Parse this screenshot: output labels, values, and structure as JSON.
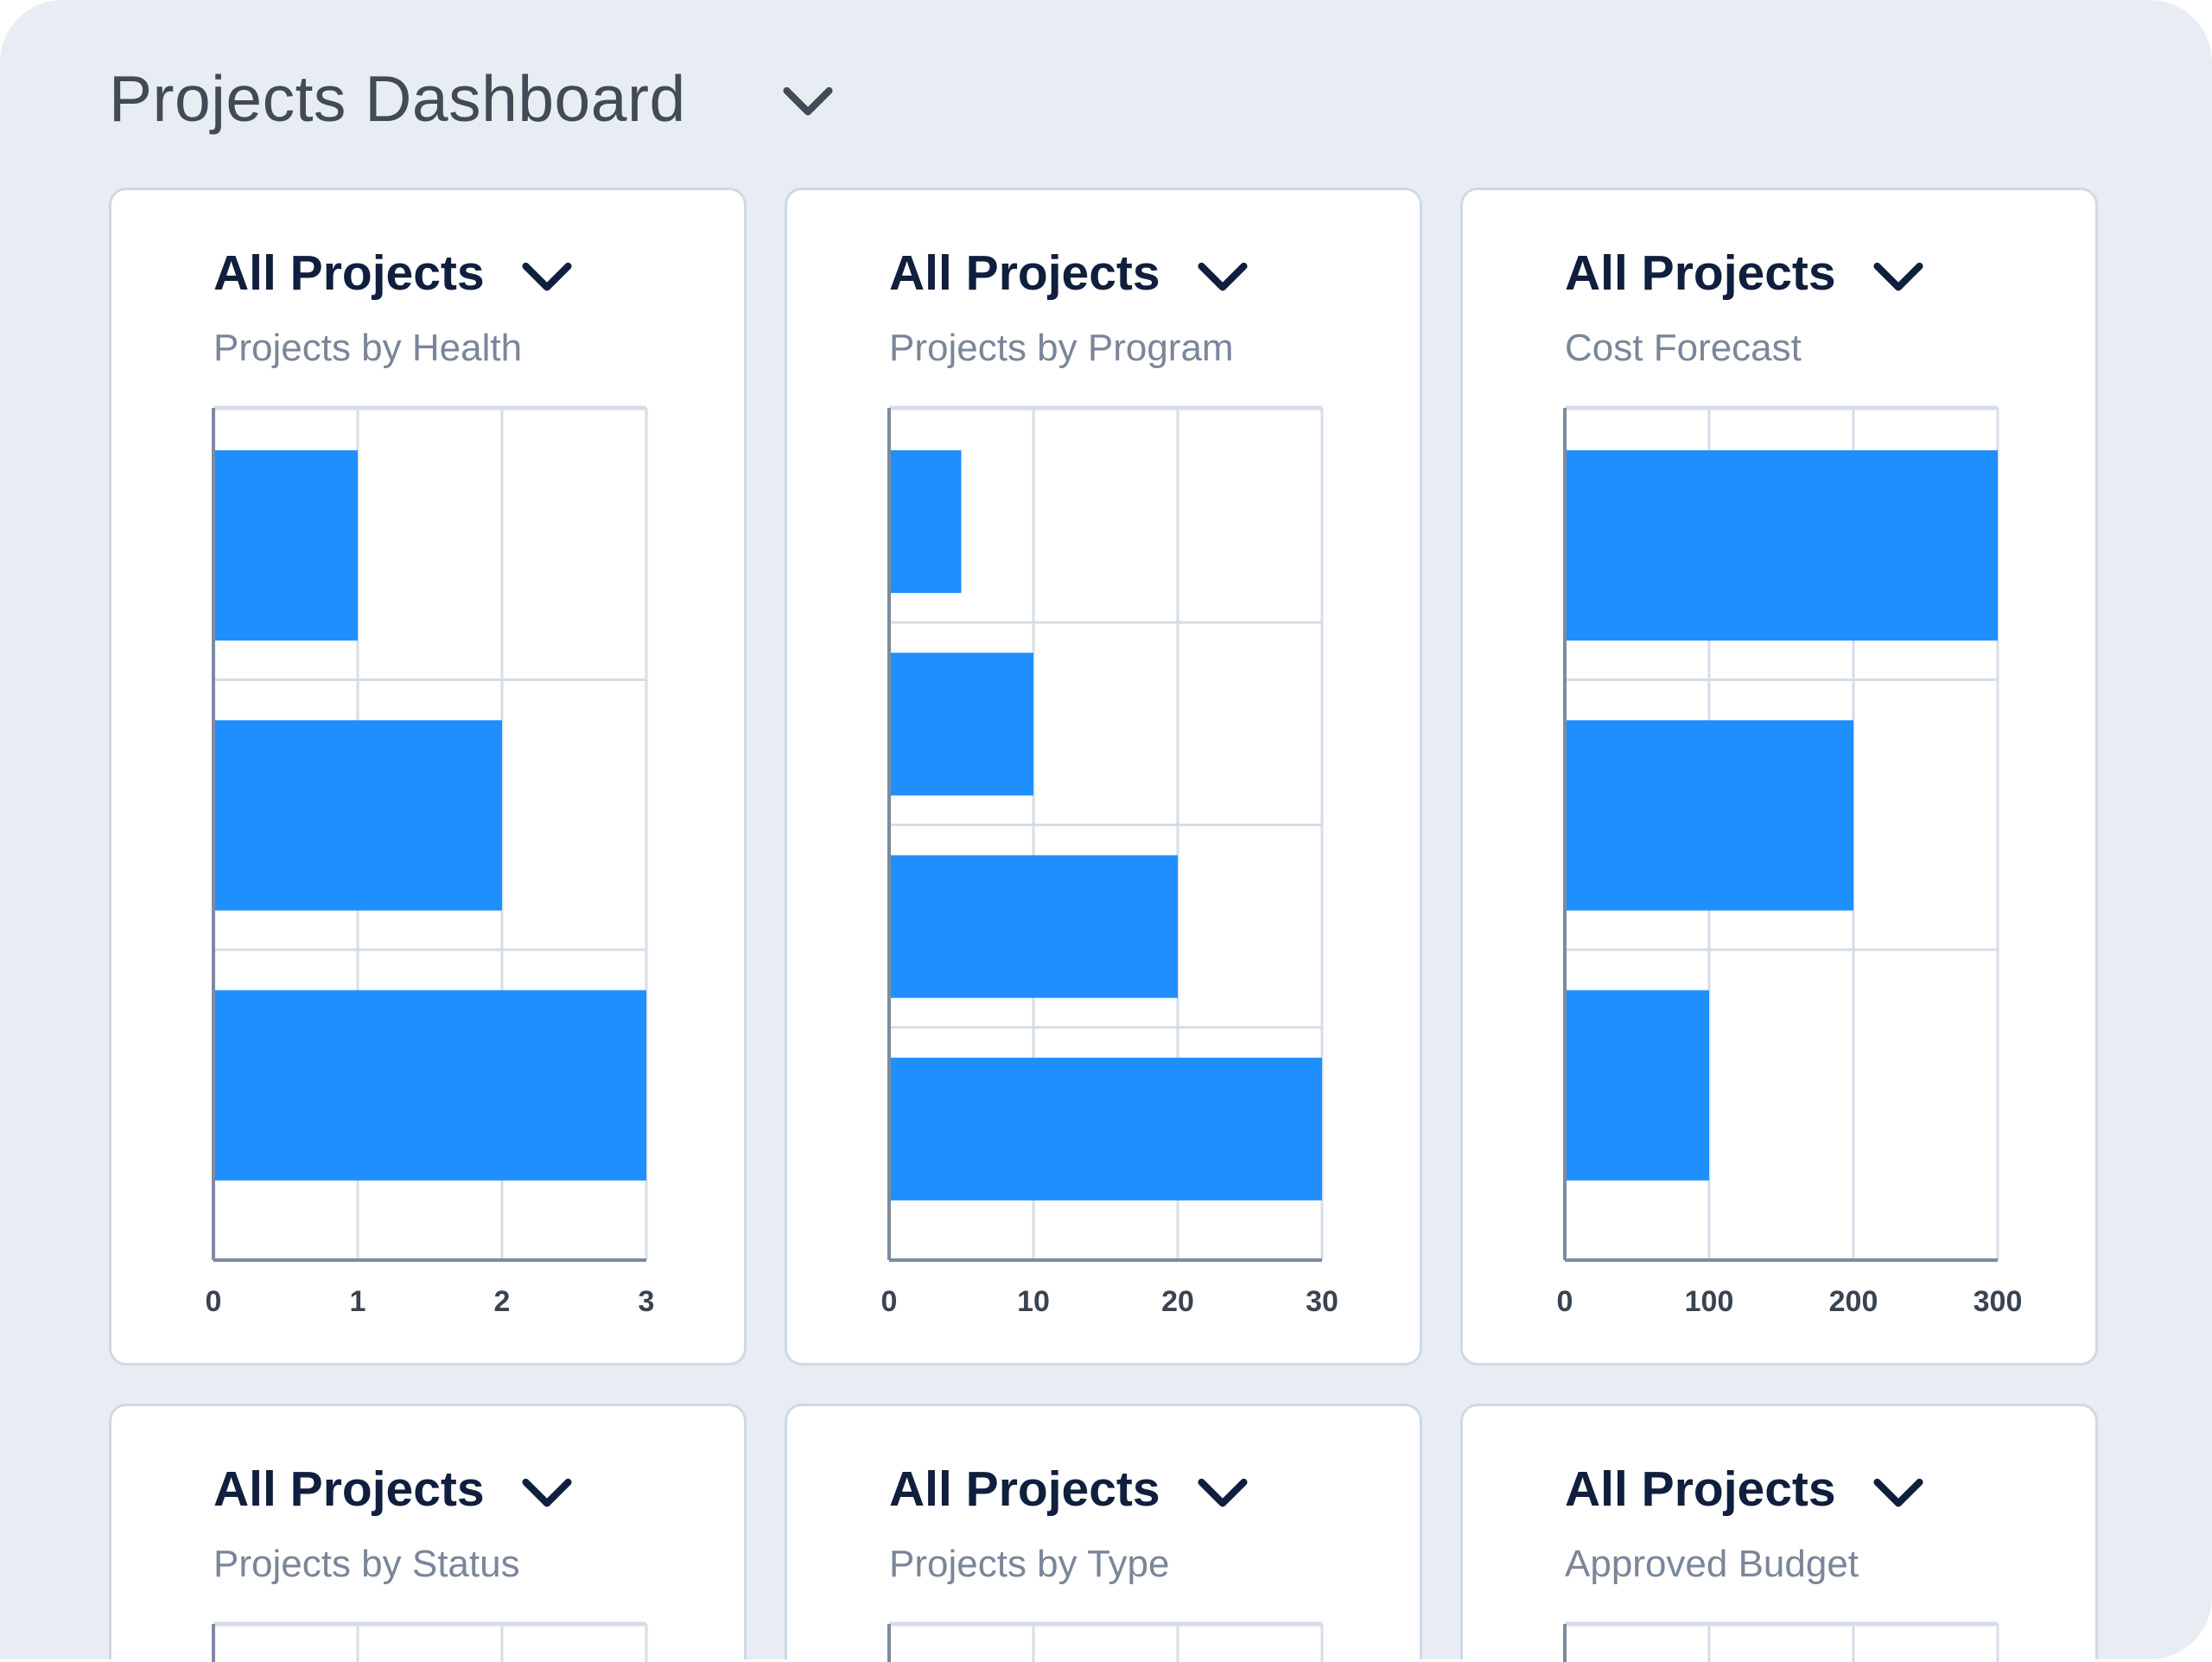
{
  "header": {
    "title": "Projects Dashboard",
    "icon": "chevron-down-icon"
  },
  "colors": {
    "bar": "#1f8ffe",
    "background": "#e8edf4",
    "title": "#414a57",
    "subtitle": "#7a8699"
  },
  "cards": [
    {
      "filter": "All Projects",
      "subtitle": "Projects by Health"
    },
    {
      "filter": "All Projects",
      "subtitle": "Projects by Program"
    },
    {
      "filter": "All Projects",
      "subtitle": "Cost Forecast"
    },
    {
      "filter": "All Projects",
      "subtitle": "Projects by Status"
    },
    {
      "filter": "All Projects",
      "subtitle": "Projects by Type"
    },
    {
      "filter": "All Projects",
      "subtitle": "Approved Budget"
    }
  ],
  "chart_data": [
    {
      "type": "bar",
      "orientation": "horizontal",
      "title": "Projects by Health",
      "values": [
        1,
        2,
        3
      ],
      "xlim": [
        0,
        3
      ],
      "xticks": [
        "0",
        "1",
        "2",
        "3"
      ],
      "grid": true
    },
    {
      "type": "bar",
      "orientation": "horizontal",
      "title": "Projects by Program",
      "values": [
        5,
        10,
        20,
        30
      ],
      "xlim": [
        0,
        30
      ],
      "xticks": [
        "0",
        "10",
        "20",
        "30"
      ],
      "grid": true
    },
    {
      "type": "bar",
      "orientation": "horizontal",
      "title": "Cost Forecast",
      "values": [
        300,
        200,
        100
      ],
      "xlim": [
        0,
        300
      ],
      "xticks": [
        "0",
        "100",
        "200",
        "300"
      ],
      "grid": true
    }
  ]
}
